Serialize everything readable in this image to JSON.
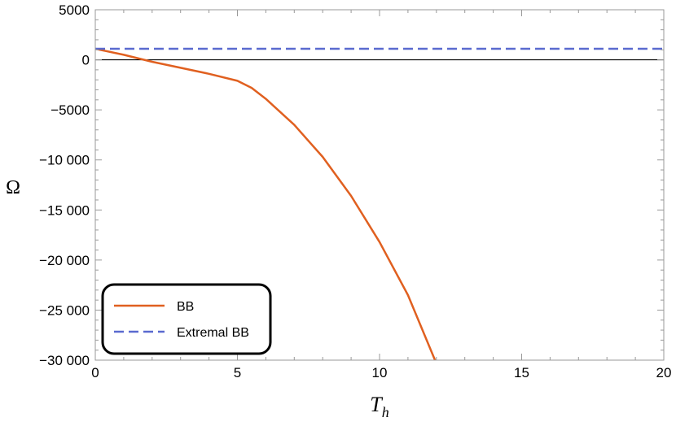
{
  "chart_data": {
    "type": "line",
    "xlabel": "T",
    "xlabel_subscript": "h",
    "ylabel": "Ω",
    "xlim": [
      0,
      20
    ],
    "ylim": [
      -30000,
      5000
    ],
    "x_ticks": [
      0,
      5,
      10,
      15,
      20
    ],
    "x_tick_labels": [
      "0",
      "5",
      "10",
      "15",
      "20"
    ],
    "y_ticks": [
      5000,
      0,
      -5000,
      -10000,
      -15000,
      -20000,
      -25000,
      -30000
    ],
    "y_tick_labels": [
      "5000",
      "0",
      "−5000",
      "−10 000",
      "−15 000",
      "−20 000",
      "−25 000",
      "−30 000"
    ],
    "grid": false,
    "zero_line": true,
    "legend_position": "bottom-left",
    "series": [
      {
        "name": "BB",
        "color": "#e06020",
        "style": "solid",
        "x": [
          0,
          1,
          2,
          3,
          4,
          5,
          5.5,
          6,
          7,
          8,
          9,
          10,
          11,
          11.95
        ],
        "y": [
          1100,
          500,
          -200,
          -800,
          -1400,
          -2100,
          -2800,
          -3900,
          -6500,
          -9700,
          -13600,
          -18200,
          -23500,
          -30000
        ]
      },
      {
        "name": "Extremal BB",
        "color": "#5a6acf",
        "style": "dashed",
        "x": [
          0,
          20
        ],
        "y": [
          1100,
          1100
        ]
      }
    ]
  }
}
